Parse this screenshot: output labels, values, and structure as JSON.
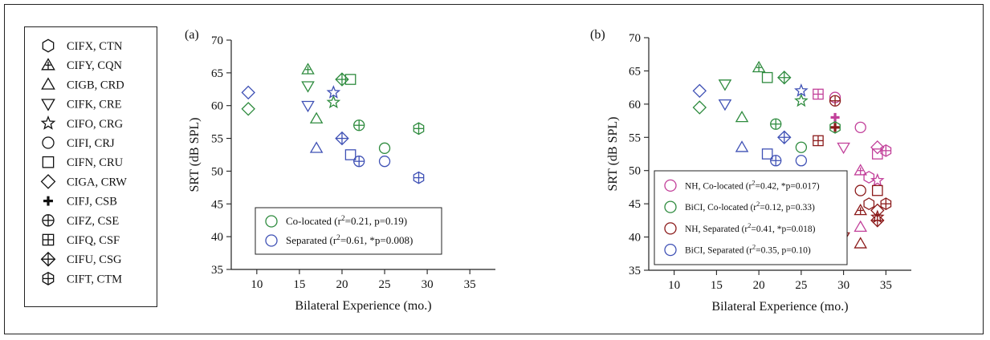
{
  "subject_legend": [
    {
      "marker": "hexagon",
      "label": "CIFX, CTN"
    },
    {
      "marker": "triangle-plus",
      "label": "CIFY, CQN"
    },
    {
      "marker": "triangle",
      "label": "CIGB, CRD"
    },
    {
      "marker": "triangle-down",
      "label": "CIFK, CRE"
    },
    {
      "marker": "star",
      "label": "CIFO, CRG"
    },
    {
      "marker": "circle",
      "label": "CIFI, CRJ"
    },
    {
      "marker": "square",
      "label": "CIFN, CRU"
    },
    {
      "marker": "diamond",
      "label": "CIGA, CRW"
    },
    {
      "marker": "plus",
      "label": "CIFJ, CSB"
    },
    {
      "marker": "circle-plus",
      "label": "CIFZ, CSE"
    },
    {
      "marker": "square-plus",
      "label": "CIFQ, CSF"
    },
    {
      "marker": "diamond-plus",
      "label": "CIFU, CSG"
    },
    {
      "marker": "hexagon-plus",
      "label": "CIFT, CTM"
    }
  ],
  "colors": {
    "bici_colocated": "#2e8b3e",
    "bici_separated": "#3f51b5",
    "nh_colocated": "#c2409a",
    "nh_separated": "#8b1a1a",
    "axis": "#222222"
  },
  "chart_data": [
    {
      "type": "scatter",
      "panel_label": "(a)",
      "xlabel": "Bilateral Experience (mo.)",
      "ylabel": "SRT (dB SPL)",
      "xlim": [
        7,
        38
      ],
      "ylim": [
        35,
        70
      ],
      "xticks": [
        10,
        15,
        20,
        25,
        30,
        35
      ],
      "yticks": [
        35,
        40,
        45,
        50,
        55,
        60,
        65,
        70
      ],
      "grid": false,
      "legend_position": "bottom-center",
      "series": [
        {
          "name": "Co-located (r²=0.21, p=0.19)",
          "legend_text": "Co-located (r",
          "legend_sup": "2",
          "legend_rest": "=0.21, p=0.19)",
          "color_key": "bici_colocated",
          "points": [
            {
              "x": 9,
              "y": 59.5,
              "marker": "diamond"
            },
            {
              "x": 16,
              "y": 65.5,
              "marker": "triangle-plus"
            },
            {
              "x": 16,
              "y": 63,
              "marker": "triangle-down"
            },
            {
              "x": 17,
              "y": 58,
              "marker": "triangle"
            },
            {
              "x": 19,
              "y": 60.5,
              "marker": "star"
            },
            {
              "x": 20,
              "y": 64,
              "marker": "diamond-plus"
            },
            {
              "x": 21,
              "y": 64,
              "marker": "square"
            },
            {
              "x": 22,
              "y": 57,
              "marker": "circle-plus"
            },
            {
              "x": 25,
              "y": 53.5,
              "marker": "circle"
            },
            {
              "x": 29,
              "y": 56.5,
              "marker": "hexagon-plus"
            }
          ]
        },
        {
          "name": "Separated (r²=0.61, *p=0.008)",
          "legend_text": "Separated (r",
          "legend_sup": "2",
          "legend_rest": "=0.61, *p=0.008)",
          "color_key": "bici_separated",
          "points": [
            {
              "x": 9,
              "y": 62,
              "marker": "diamond"
            },
            {
              "x": 16,
              "y": 60,
              "marker": "triangle-down"
            },
            {
              "x": 17,
              "y": 53.5,
              "marker": "triangle"
            },
            {
              "x": 19,
              "y": 62,
              "marker": "star"
            },
            {
              "x": 20,
              "y": 55,
              "marker": "diamond-plus"
            },
            {
              "x": 21,
              "y": 52.5,
              "marker": "square"
            },
            {
              "x": 22,
              "y": 51.5,
              "marker": "circle-plus"
            },
            {
              "x": 25,
              "y": 51.5,
              "marker": "circle"
            },
            {
              "x": 29,
              "y": 49,
              "marker": "hexagon-plus"
            }
          ]
        }
      ]
    },
    {
      "type": "scatter",
      "panel_label": "(b)",
      "xlabel": "Bilateral Experience (mo.)",
      "ylabel": "SRT (dB SPL)",
      "xlim": [
        7,
        38
      ],
      "ylim": [
        35,
        70
      ],
      "xticks": [
        10,
        15,
        20,
        25,
        30,
        35
      ],
      "yticks": [
        35,
        40,
        45,
        50,
        55,
        60,
        65,
        70
      ],
      "grid": false,
      "legend_position": "bottom-left",
      "series": [
        {
          "name": "NH, Co-located (r²=0.42, *p=0.017)",
          "legend_text": "NH, Co-located (r",
          "legend_sup": "2",
          "legend_rest": "=0.42, *p=0.017)",
          "color_key": "nh_colocated",
          "points": [
            {
              "x": 27,
              "y": 61.5,
              "marker": "square-plus"
            },
            {
              "x": 29,
              "y": 61,
              "marker": "circle"
            },
            {
              "x": 29,
              "y": 58,
              "marker": "plus"
            },
            {
              "x": 30,
              "y": 53.5,
              "marker": "triangle-down"
            },
            {
              "x": 32,
              "y": 56.5,
              "marker": "circle"
            },
            {
              "x": 32,
              "y": 50,
              "marker": "triangle-plus"
            },
            {
              "x": 32,
              "y": 41.5,
              "marker": "triangle"
            },
            {
              "x": 33,
              "y": 49,
              "marker": "hexagon"
            },
            {
              "x": 34,
              "y": 53.5,
              "marker": "diamond"
            },
            {
              "x": 34,
              "y": 52.5,
              "marker": "square"
            },
            {
              "x": 34,
              "y": 48.5,
              "marker": "star"
            },
            {
              "x": 35,
              "y": 53,
              "marker": "hexagon-plus"
            }
          ]
        },
        {
          "name": "BiCI, Co-located (r²=0.12, p=0.33)",
          "legend_text": "BiCI, Co-located (r",
          "legend_sup": "2",
          "legend_rest": "=0.12, p=0.33)",
          "color_key": "bici_colocated",
          "points": [
            {
              "x": 13,
              "y": 59.5,
              "marker": "diamond"
            },
            {
              "x": 16,
              "y": 63,
              "marker": "triangle-down"
            },
            {
              "x": 18,
              "y": 58,
              "marker": "triangle"
            },
            {
              "x": 20,
              "y": 65.5,
              "marker": "triangle-plus"
            },
            {
              "x": 21,
              "y": 64,
              "marker": "square"
            },
            {
              "x": 22,
              "y": 57,
              "marker": "circle-plus"
            },
            {
              "x": 23,
              "y": 64,
              "marker": "diamond-plus"
            },
            {
              "x": 25,
              "y": 60.5,
              "marker": "star"
            },
            {
              "x": 25,
              "y": 53.5,
              "marker": "circle"
            },
            {
              "x": 29,
              "y": 56.5,
              "marker": "hexagon-plus"
            }
          ]
        },
        {
          "name": "NH, Separated (r²=0.41, *p=0.018)",
          "legend_text": "NH, Separated (r",
          "legend_sup": "2",
          "legend_rest": "=0.41, *p=0.018)",
          "color_key": "nh_separated",
          "points": [
            {
              "x": 27,
              "y": 54.5,
              "marker": "square-plus"
            },
            {
              "x": 29,
              "y": 60.5,
              "marker": "circle-plus"
            },
            {
              "x": 29,
              "y": 56.5,
              "marker": "plus"
            },
            {
              "x": 30,
              "y": 40,
              "marker": "triangle-down"
            },
            {
              "x": 32,
              "y": 47,
              "marker": "circle"
            },
            {
              "x": 32,
              "y": 44,
              "marker": "triangle-plus"
            },
            {
              "x": 32,
              "y": 39,
              "marker": "triangle"
            },
            {
              "x": 33,
              "y": 45,
              "marker": "hexagon"
            },
            {
              "x": 34,
              "y": 47,
              "marker": "square"
            },
            {
              "x": 34,
              "y": 44,
              "marker": "diamond"
            },
            {
              "x": 34,
              "y": 43,
              "marker": "star"
            },
            {
              "x": 34,
              "y": 42.5,
              "marker": "diamond-plus"
            },
            {
              "x": 35,
              "y": 45,
              "marker": "hexagon-plus"
            }
          ]
        },
        {
          "name": "BiCI, Separated (r²=0.35, p=0.10)",
          "legend_text": "BiCI, Separated (r",
          "legend_sup": "2",
          "legend_rest": "=0.35, p=0.10)",
          "color_key": "bici_separated",
          "points": [
            {
              "x": 13,
              "y": 62,
              "marker": "diamond"
            },
            {
              "x": 16,
              "y": 60,
              "marker": "triangle-down"
            },
            {
              "x": 18,
              "y": 53.5,
              "marker": "triangle"
            },
            {
              "x": 21,
              "y": 52.5,
              "marker": "square"
            },
            {
              "x": 22,
              "y": 51.5,
              "marker": "circle-plus"
            },
            {
              "x": 23,
              "y": 55,
              "marker": "diamond-plus"
            },
            {
              "x": 25,
              "y": 62,
              "marker": "star"
            },
            {
              "x": 25,
              "y": 51.5,
              "marker": "circle"
            },
            {
              "x": 29,
              "y": 49,
              "marker": "hexagon-plus"
            }
          ]
        }
      ]
    }
  ]
}
